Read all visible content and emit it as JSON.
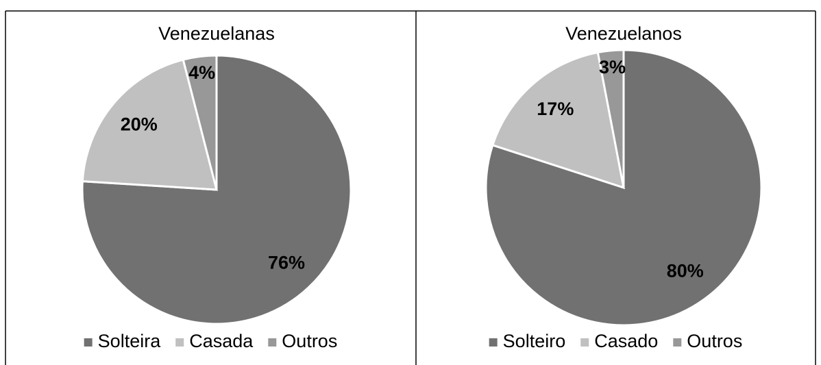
{
  "chart_data": [
    {
      "type": "pie",
      "title": "Venezuelanas",
      "categories": [
        "Solteira",
        "Casada",
        "Outros"
      ],
      "values": [
        76,
        20,
        4
      ],
      "value_labels": [
        "76%",
        "20%",
        "4%"
      ],
      "colors": [
        "#717171",
        "#c0c0c0",
        "#989898"
      ],
      "legend": "bottom"
    },
    {
      "type": "pie",
      "title": "Venezuelanos",
      "categories": [
        "Solteiro",
        "Casado",
        "Outros"
      ],
      "values": [
        80,
        17,
        3
      ],
      "value_labels": [
        "80%",
        "17%",
        "3%"
      ],
      "colors": [
        "#717171",
        "#c0c0c0",
        "#989898"
      ],
      "legend": "bottom"
    }
  ]
}
